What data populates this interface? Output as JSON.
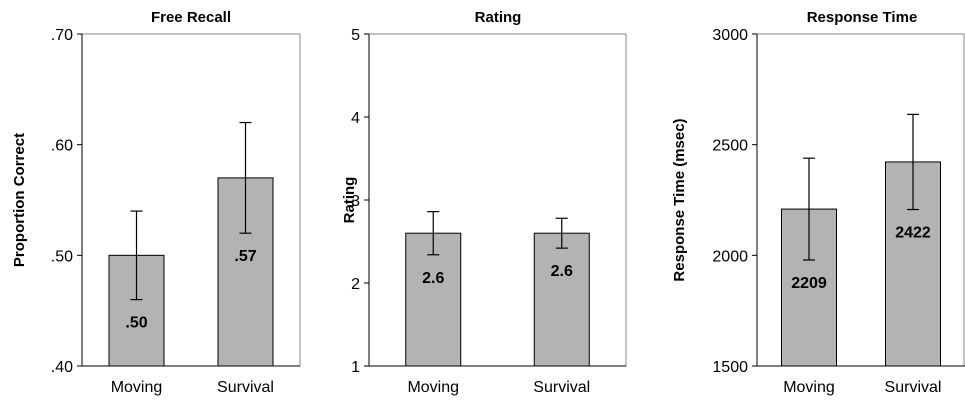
{
  "chart_data": [
    {
      "type": "bar",
      "title": "Free Recall",
      "ylabel": "Proportion Correct",
      "categories": [
        "Moving",
        "Survival"
      ],
      "values": [
        0.5,
        0.57
      ],
      "value_labels": [
        ".50",
        ".57"
      ],
      "errors": [
        0.04,
        0.05
      ],
      "ylim": [
        0.4,
        0.7
      ],
      "yticks": [
        0.4,
        0.5,
        0.6,
        0.7
      ],
      "ytick_labels": [
        ".40",
        ".50",
        ".60",
        ".70"
      ],
      "bar_color": "#b3b3b3",
      "grid": false
    },
    {
      "type": "bar",
      "title": "Rating",
      "ylabel": "Rating",
      "categories": [
        "Moving",
        "Survival"
      ],
      "values": [
        2.6,
        2.6
      ],
      "value_labels": [
        "2.6",
        "2.6"
      ],
      "errors": [
        0.26,
        0.18
      ],
      "ylim": [
        1,
        5
      ],
      "yticks": [
        1,
        2,
        3,
        4,
        5
      ],
      "ytick_labels": [
        "1",
        "2",
        "3",
        "4",
        "5"
      ],
      "bar_color": "#b3b3b3",
      "grid": false
    },
    {
      "type": "bar",
      "title": "Response Time",
      "ylabel": "Response Time (msec)",
      "categories": [
        "Moving",
        "Survival"
      ],
      "values": [
        2209,
        2422
      ],
      "value_labels": [
        "2209",
        "2422"
      ],
      "errors": [
        230,
        215
      ],
      "ylim": [
        1500,
        3000
      ],
      "yticks": [
        1500,
        2000,
        2500,
        3000
      ],
      "ytick_labels": [
        "1500",
        "2000",
        "2500",
        "3000"
      ],
      "bar_color": "#b3b3b3",
      "grid": false
    }
  ]
}
